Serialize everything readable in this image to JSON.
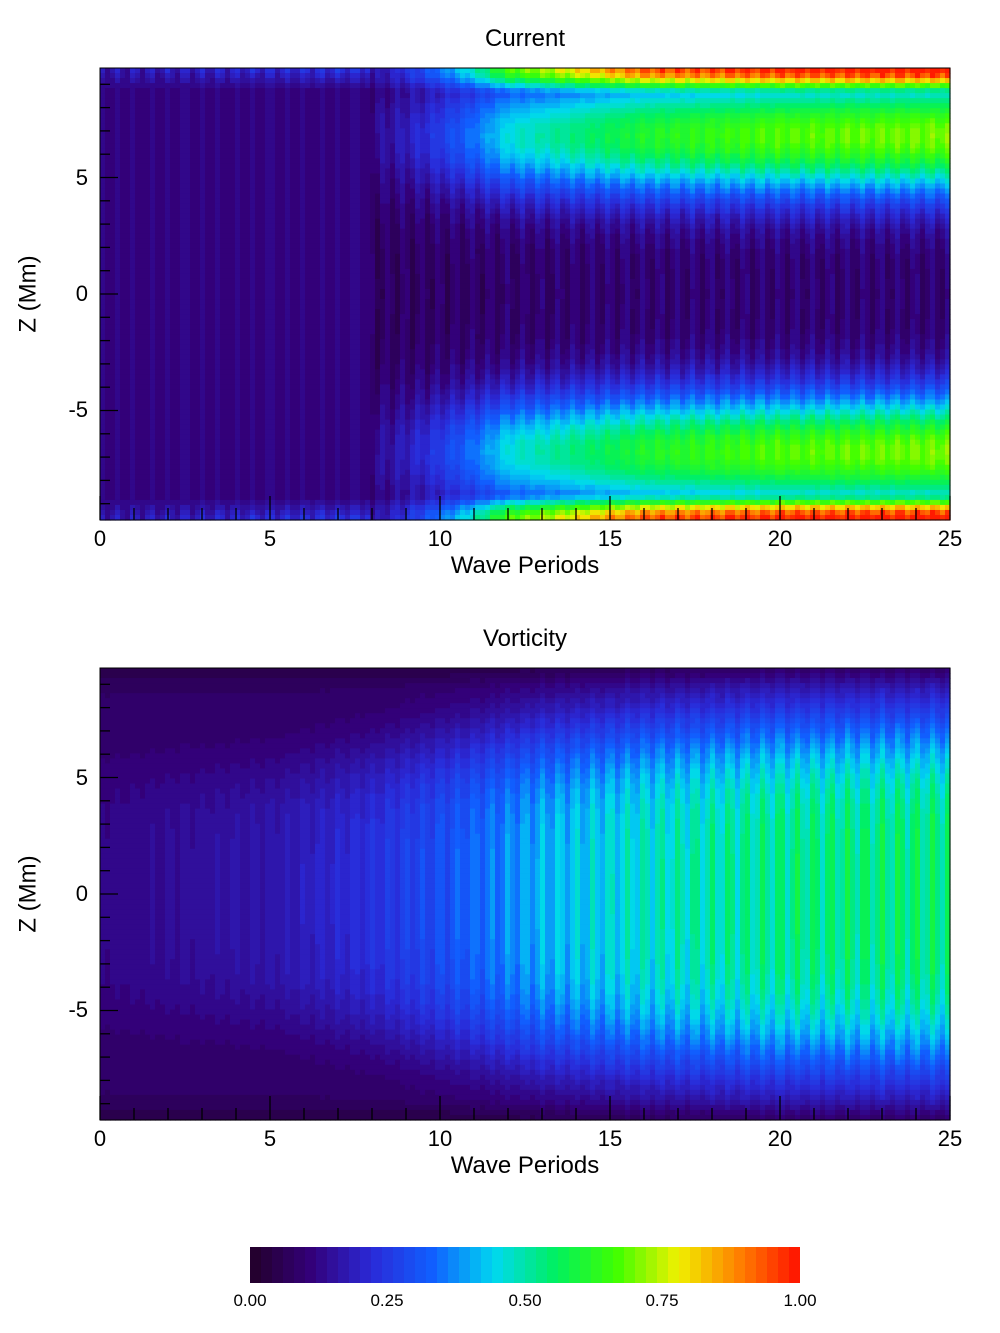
{
  "chart_data": [
    {
      "type": "heatmap",
      "title": "Current",
      "xlabel": "Wave Periods",
      "ylabel": "Z (Mm)",
      "xlim": [
        0,
        25
      ],
      "ylim": [
        -9.7,
        9.7
      ],
      "xticks": [
        "0",
        "5",
        "10",
        "15",
        "20",
        "25"
      ],
      "xtick_values": [
        0,
        5,
        10,
        15,
        20,
        25
      ],
      "yticks": [
        "5",
        "0",
        "-5"
      ],
      "ytick_values": [
        5,
        0,
        -5
      ],
      "value_range": [
        0,
        1
      ],
      "oscillation_period": 0.5,
      "description_values": {
        "t": [
          0,
          8,
          12,
          16,
          20,
          25
        ],
        "boundary_max": [
          0.12,
          0.2,
          0.62,
          0.9,
          0.97,
          1.0
        ],
        "mid_band_value": [
          0.12,
          0.14,
          0.4,
          0.55,
          0.62,
          0.65
        ],
        "center_value": [
          0.08,
          0.08,
          0.09,
          0.1,
          0.1,
          0.1
        ]
      }
    },
    {
      "type": "heatmap",
      "title": "Vorticity",
      "xlabel": "Wave Periods",
      "ylabel": "Z (Mm)",
      "xlim": [
        0,
        25
      ],
      "ylim": [
        -9.7,
        9.7
      ],
      "xticks": [
        "0",
        "5",
        "10",
        "15",
        "20",
        "25"
      ],
      "xtick_values": [
        0,
        5,
        10,
        15,
        20,
        25
      ],
      "yticks": [
        "5",
        "0",
        "-5"
      ],
      "ytick_values": [
        5,
        0,
        -5
      ],
      "value_range": [
        0,
        1
      ],
      "oscillation_period": 0.5,
      "description_values": {
        "t": [
          0,
          5,
          8,
          10,
          13,
          16,
          20,
          25
        ],
        "center_value": [
          0.13,
          0.18,
          0.25,
          0.32,
          0.45,
          0.52,
          0.58,
          0.6
        ],
        "half_width_z": [
          6,
          6,
          6.5,
          7,
          7.5,
          7.8,
          8,
          8
        ]
      }
    }
  ],
  "colorbar": {
    "ticks": [
      "0.00",
      "0.25",
      "0.50",
      "0.75",
      "1.00"
    ],
    "tick_values": [
      0,
      0.25,
      0.5,
      0.75,
      1
    ],
    "levels": 50,
    "colors": [
      "#230028",
      "#33007a",
      "#2a2ad8",
      "#1060ff",
      "#00d8f0",
      "#00f060",
      "#40ff00",
      "#f0f000",
      "#ff8000",
      "#ff1000"
    ]
  }
}
